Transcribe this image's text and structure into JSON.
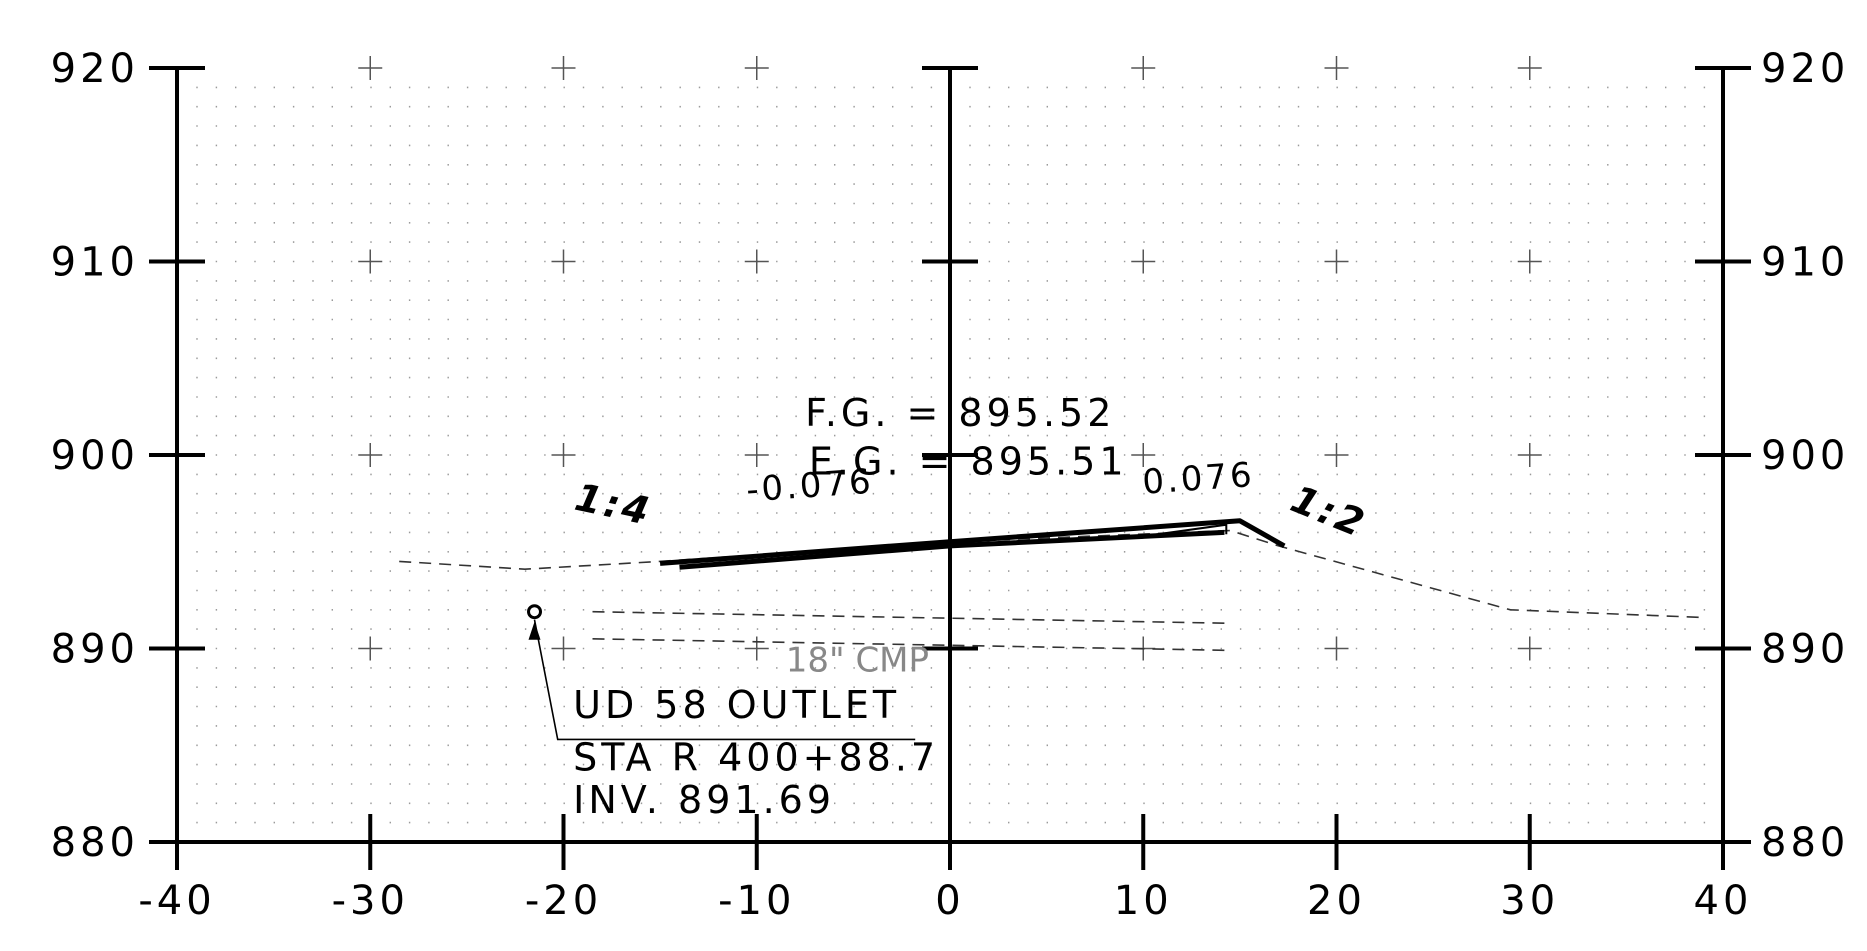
{
  "chart_data": {
    "type": "line",
    "x_ticks": [
      "-40",
      "-30",
      "-20",
      "-10",
      "0",
      "10",
      "20",
      "30",
      "40"
    ],
    "y_ticks": [
      "880",
      "890",
      "900",
      "910",
      "920"
    ],
    "xlim": [
      -40,
      40
    ],
    "ylim": [
      880,
      920
    ],
    "grid": true,
    "series": [
      {
        "role": "existing ground",
        "style": "dashed",
        "points": [
          [
            -28.5,
            894.5
          ],
          [
            -22,
            894.1
          ],
          [
            -15,
            894.5
          ],
          [
            0,
            895.51
          ],
          [
            14.5,
            896.1
          ],
          [
            17,
            895.3
          ],
          [
            29,
            892.0
          ],
          [
            39,
            891.6
          ]
        ]
      },
      {
        "role": "finished grade top",
        "style": "heavy",
        "points": [
          [
            -15,
            894.4
          ],
          [
            0,
            895.52
          ],
          [
            15,
            896.6
          ],
          [
            17.3,
            895.3
          ]
        ]
      },
      {
        "role": "finished grade bottom",
        "style": "heavy",
        "points": [
          [
            -14,
            894.2
          ],
          [
            0,
            895.3
          ],
          [
            14.2,
            896.0
          ]
        ]
      },
      {
        "role": "shoulder",
        "style": "thin",
        "points": [
          [
            10,
            895.8
          ],
          [
            14.3,
            896.4
          ],
          [
            14.3,
            895.9
          ]
        ]
      },
      {
        "role": "pipe top",
        "style": "dashed",
        "points": [
          [
            -18.5,
            891.9
          ],
          [
            14.5,
            891.3
          ]
        ]
      },
      {
        "role": "pipe bottom",
        "style": "dashed",
        "points": [
          [
            -18.5,
            890.5
          ],
          [
            14.5,
            889.9
          ]
        ]
      }
    ],
    "annotations": {
      "fg": "F.G.  = 895.52",
      "eg": "E.G.  = 895.51",
      "slope_left": "1:4",
      "slope_right": "1:2",
      "grade_left": "-0.076",
      "grade_right": "0.076",
      "pipe": "18\" CMP",
      "outlet_title": "UD 58 OUTLET",
      "outlet_station": "STA R 400+88.7",
      "outlet_invert": "INV. 891.69"
    },
    "outlet_point": [
      -21.5,
      891.9
    ],
    "text_positions": {
      "fg": [
        -7.5,
        901.5
      ],
      "eg": [
        -7.3,
        899.0
      ],
      "grade_left": [
        -10.5,
        897.6
      ],
      "grade_right": [
        10,
        898.0
      ],
      "slope_left": [
        -19.5,
        897.2
      ],
      "slope_right": [
        17.5,
        897.2
      ],
      "pipe": [
        -8.5,
        888.8
      ],
      "outlet_title": [
        -19.5,
        886.4
      ],
      "outlet_station": [
        -19.5,
        883.7
      ],
      "outlet_invert": [
        -19.5,
        881.5
      ]
    }
  }
}
